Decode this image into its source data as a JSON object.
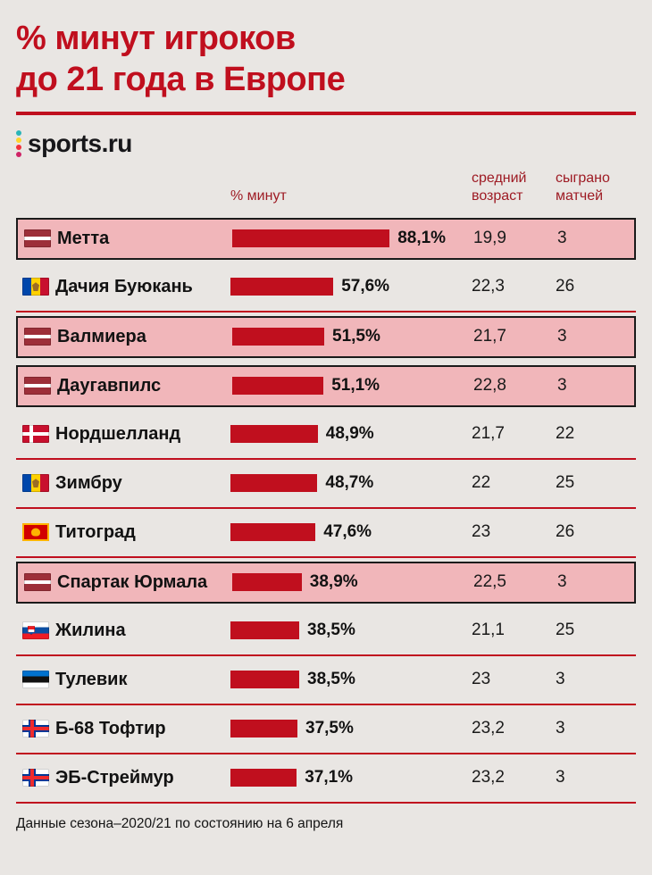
{
  "title": {
    "line1": "% минут игроков",
    "line2": "до 21 года в Европе"
  },
  "logo": {
    "text": "sports.ru",
    "dot_colors": [
      "#2bb5b8",
      "#ffd42a",
      "#f2303b",
      "#cf2366"
    ]
  },
  "columns": {
    "minutes": "% минут",
    "age": "средний\nвозраст",
    "matches": "сыграно\nматчей"
  },
  "footer": {
    "note": "Данные сезона–2020/21 по состоянию на 6 апреля"
  },
  "colors": {
    "accent": "#c00f1e",
    "highlight_bg": "#f1b6ba",
    "page_bg": "#e9e6e3"
  },
  "chart_data": {
    "type": "bar",
    "title": "% минут игроков до 21 года в Европе",
    "xlabel": "% минут",
    "legend": null,
    "value_axis_max": 100,
    "rows": [
      {
        "team": "Метта",
        "flag": "latvia",
        "percent": 88.1,
        "percent_label": "88,1%",
        "avg_age": "19,9",
        "matches": "3",
        "highlighted": true
      },
      {
        "team": "Дачия Буюкань",
        "flag": "moldova",
        "percent": 57.6,
        "percent_label": "57,6%",
        "avg_age": "22,3",
        "matches": "26",
        "highlighted": false
      },
      {
        "team": "Валмиера",
        "flag": "latvia",
        "percent": 51.5,
        "percent_label": "51,5%",
        "avg_age": "21,7",
        "matches": "3",
        "highlighted": true
      },
      {
        "team": "Даугавпилс",
        "flag": "latvia",
        "percent": 51.1,
        "percent_label": "51,1%",
        "avg_age": "22,8",
        "matches": "3",
        "highlighted": true
      },
      {
        "team": "Нордшелланд",
        "flag": "denmark",
        "percent": 48.9,
        "percent_label": "48,9%",
        "avg_age": "21,7",
        "matches": "22",
        "highlighted": false
      },
      {
        "team": "Зимбру",
        "flag": "moldova",
        "percent": 48.7,
        "percent_label": "48,7%",
        "avg_age": "22",
        "matches": "25",
        "highlighted": false
      },
      {
        "team": "Титоград",
        "flag": "montenegro",
        "percent": 47.6,
        "percent_label": "47,6%",
        "avg_age": "23",
        "matches": "26",
        "highlighted": false
      },
      {
        "team": "Спартак Юрмала",
        "flag": "latvia",
        "percent": 38.9,
        "percent_label": "38,9%",
        "avg_age": "22,5",
        "matches": "3",
        "highlighted": true
      },
      {
        "team": "Жилина",
        "flag": "slovakia",
        "percent": 38.5,
        "percent_label": "38,5%",
        "avg_age": "21,1",
        "matches": "25",
        "highlighted": false
      },
      {
        "team": "Тулевик",
        "flag": "estonia",
        "percent": 38.5,
        "percent_label": "38,5%",
        "avg_age": "23",
        "matches": "3",
        "highlighted": false
      },
      {
        "team": "Б-68 Тофтир",
        "flag": "faroe",
        "percent": 37.5,
        "percent_label": "37,5%",
        "avg_age": "23,2",
        "matches": "3",
        "highlighted": false
      },
      {
        "team": "ЭБ-Стреймур",
        "flag": "faroe",
        "percent": 37.1,
        "percent_label": "37,1%",
        "avg_age": "23,2",
        "matches": "3",
        "highlighted": false
      }
    ]
  }
}
